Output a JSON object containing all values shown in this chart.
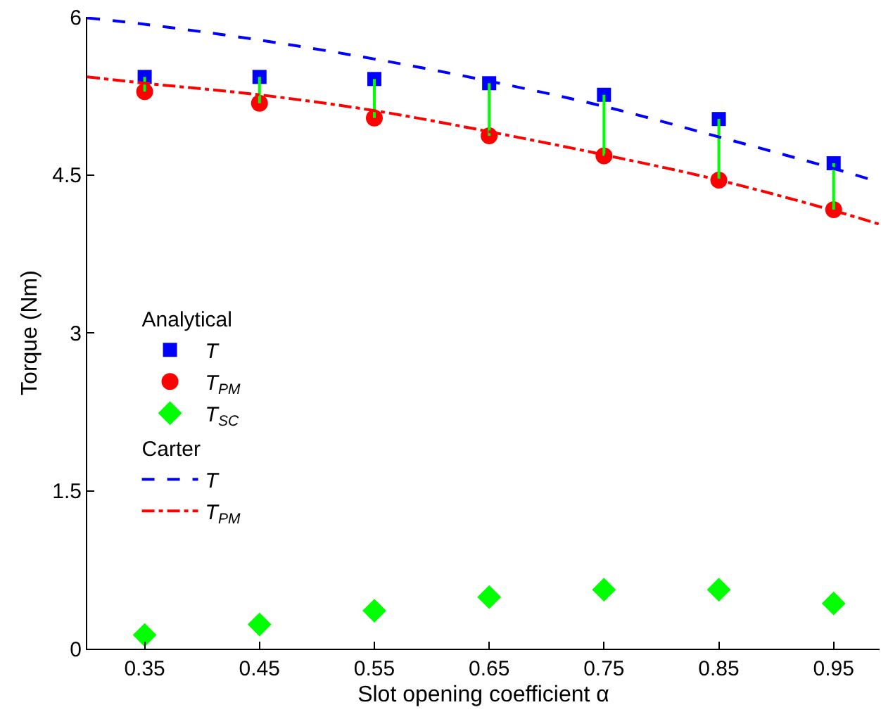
{
  "chart_data": {
    "type": "scatter",
    "xlabel": "Slot opening coefficient α",
    "ylabel": "Torque (Nm)",
    "legend_title": [
      "Analytical",
      "Carter"
    ],
    "xlim": [
      0.3,
      0.99
    ],
    "xticks": [
      0.35,
      0.45,
      0.55,
      0.65,
      0.75,
      0.85,
      0.95
    ],
    "ylim": [
      0,
      6
    ],
    "yticks": [
      0,
      1.5,
      3,
      4.5,
      6
    ],
    "legend": "left",
    "x": [
      0.35,
      0.45,
      0.55,
      0.65,
      0.75,
      0.85,
      0.95
    ],
    "series": [
      {
        "name": "T",
        "marker": "square",
        "color": "#0000ff",
        "values": [
          5.43,
          5.43,
          5.41,
          5.37,
          5.26,
          5.03,
          4.61
        ]
      },
      {
        "name": "T$_{PM}$",
        "marker": "circle",
        "color": "#ff0000",
        "values": [
          5.29,
          5.18,
          5.04,
          4.87,
          4.68,
          4.45,
          4.17
        ]
      },
      {
        "name": "T$_{SC}$",
        "marker": "diamond",
        "color": "#00ff00",
        "values": [
          0.13,
          0.23,
          0.36,
          0.49,
          0.56,
          0.56,
          0.43
        ]
      },
      {
        "type": "line",
        "color": "#00ff00",
        "x": [
          0.35,
          0.35
        ],
        "values": [
          5.29,
          5.43
        ]
      },
      {
        "type": "line",
        "color": "#00ff00",
        "x": [
          0.45,
          0.45
        ],
        "values": [
          5.18,
          5.43
        ]
      },
      {
        "type": "line",
        "color": "#00ff00",
        "x": [
          0.55,
          0.55
        ],
        "values": [
          5.04,
          5.41
        ]
      },
      {
        "type": "line",
        "color": "#00ff00",
        "x": [
          0.65,
          0.65
        ],
        "values": [
          4.87,
          5.37
        ]
      },
      {
        "type": "line",
        "color": "#00ff00",
        "x": [
          0.75,
          0.75
        ],
        "values": [
          4.68,
          5.26
        ]
      },
      {
        "type": "line",
        "color": "#00ff00",
        "x": [
          0.85,
          0.85
        ],
        "values": [
          4.45,
          5.03
        ]
      },
      {
        "type": "line",
        "color": "#00ff00",
        "x": [
          0.95,
          0.95
        ],
        "values": [
          4.17,
          4.61
        ]
      },
      {
        "name": "T",
        "type": "line",
        "line_style": "dashed",
        "color": "#0000ff",
        "x": [
          0.3,
          0.35,
          0.45,
          0.55,
          0.65,
          0.75,
          0.85,
          0.95,
          0.99
        ],
        "values": [
          5.99,
          5.93,
          5.78,
          5.6,
          5.39,
          5.15,
          4.86,
          4.56,
          4.43
        ]
      },
      {
        "name": "T$_{PM}$",
        "type": "line",
        "line_style": "dashdot",
        "color": "#ff0000",
        "x": [
          0.3,
          0.35,
          0.45,
          0.55,
          0.65,
          0.75,
          0.85,
          0.95,
          0.99
        ],
        "values": [
          5.43,
          5.37,
          5.26,
          5.11,
          4.91,
          4.69,
          4.45,
          4.16,
          4.03
        ]
      }
    ]
  }
}
